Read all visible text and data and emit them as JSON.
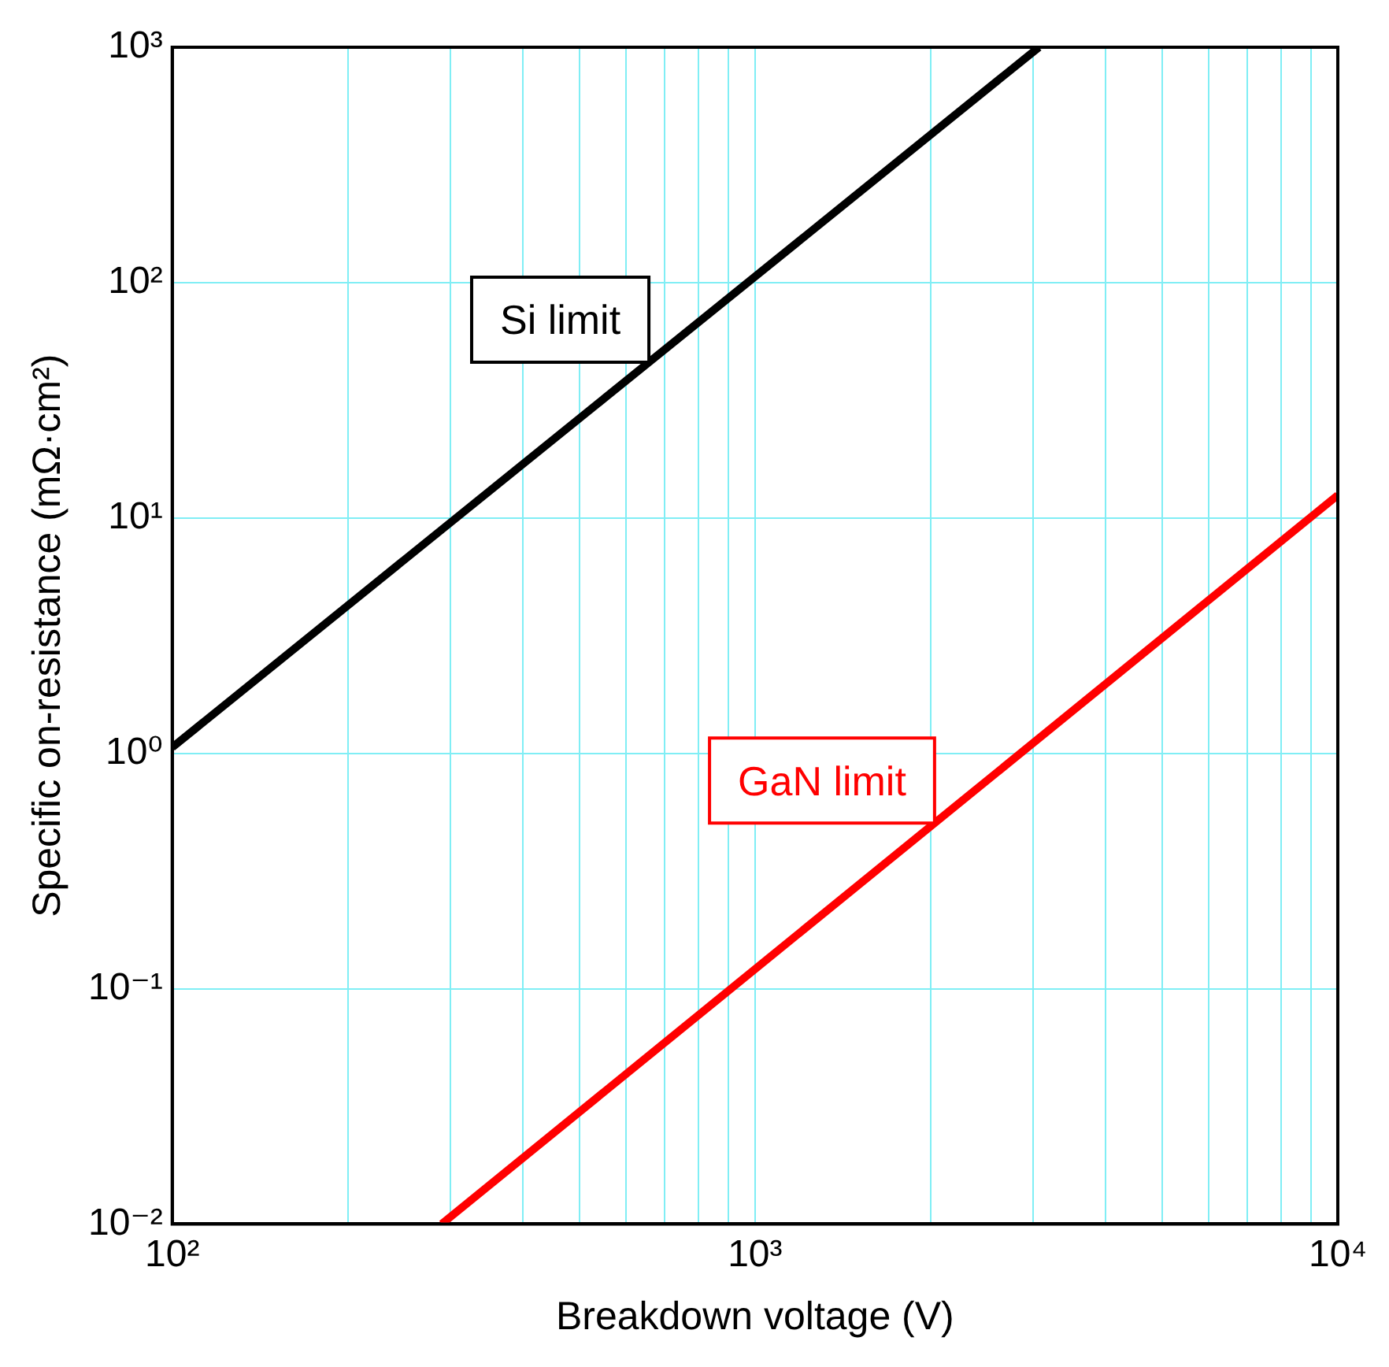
{
  "chart_data": {
    "type": "line",
    "xlabel": "Breakdown voltage (V)",
    "ylabel": "Specific on-resistance (mΩ·cm²)",
    "log": "xy",
    "grid": true,
    "legend": false,
    "marker": "none",
    "line_style": "solid",
    "xlim": [
      100,
      10000
    ],
    "ylim": [
      0.01,
      1000
    ],
    "xticks": [
      {
        "value": 100,
        "label": "10²"
      },
      {
        "value": 200,
        "label": null
      },
      {
        "value": 300,
        "label": null
      },
      {
        "value": 400,
        "label": null
      },
      {
        "value": 500,
        "label": null
      },
      {
        "value": 600,
        "label": null
      },
      {
        "value": 700,
        "label": null
      },
      {
        "value": 800,
        "label": null
      },
      {
        "value": 900,
        "label": null
      },
      {
        "value": 1000,
        "label": "10³"
      },
      {
        "value": 2000,
        "label": null
      },
      {
        "value": 3000,
        "label": null
      },
      {
        "value": 4000,
        "label": null
      },
      {
        "value": 5000,
        "label": null
      },
      {
        "value": 6000,
        "label": null
      },
      {
        "value": 7000,
        "label": null
      },
      {
        "value": 8000,
        "label": null
      },
      {
        "value": 9000,
        "label": null
      },
      {
        "value": 10000,
        "label": "10⁴"
      }
    ],
    "yticks": [
      {
        "value": 0.01,
        "label": "10⁻²"
      },
      {
        "value": 0.1,
        "label": "10⁻¹"
      },
      {
        "value": 1,
        "label": "10⁰"
      },
      {
        "value": 10,
        "label": "10¹"
      },
      {
        "value": 100,
        "label": "10²"
      },
      {
        "value": 1000,
        "label": "10³"
      }
    ],
    "series": [
      {
        "name": "Si limit",
        "color": "#000000",
        "x": [
          100,
          3070
        ],
        "values": [
          1.06,
          1000
        ]
      },
      {
        "name": "GaN limit",
        "color": "#ff0000",
        "x": [
          290,
          10000
        ],
        "values": [
          0.01,
          12.5
        ]
      }
    ]
  }
}
